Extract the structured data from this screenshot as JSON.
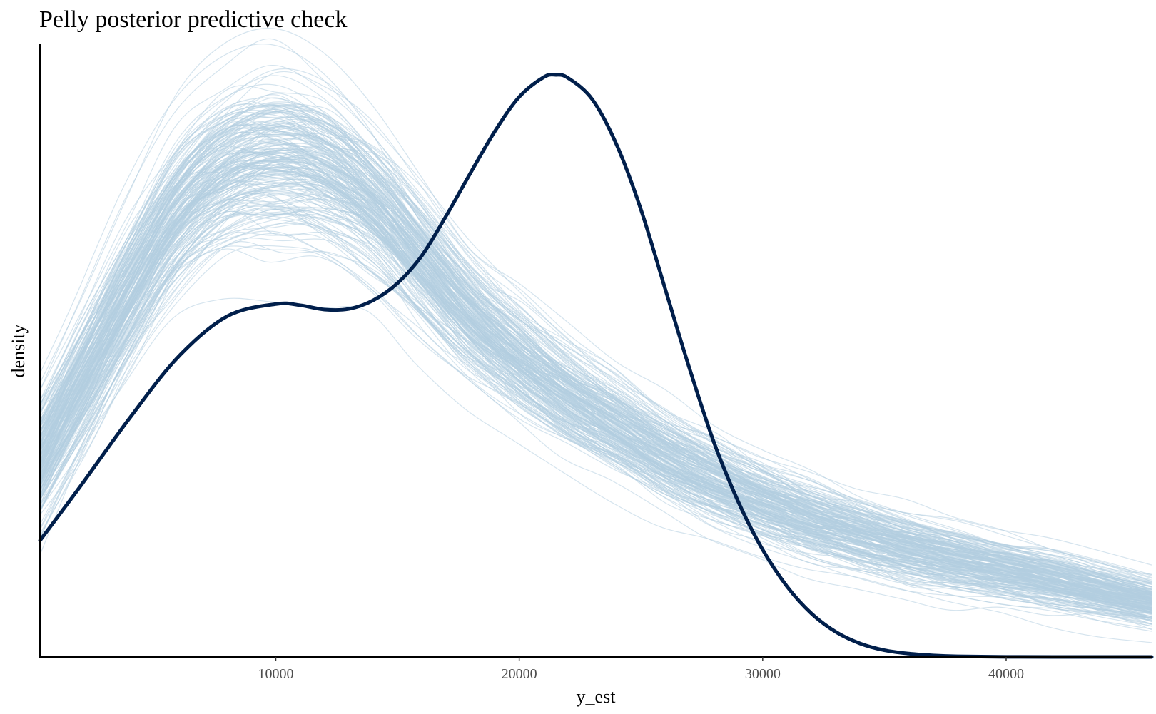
{
  "chart_data": {
    "type": "line",
    "title": "Pelly posterior predictive check",
    "xlabel": "y_est",
    "ylabel": "density",
    "xlim": [
      313,
      45980
    ],
    "ylim": [
      0,
      1
    ],
    "x_ticks": [
      10000,
      20000,
      30000,
      40000
    ],
    "x_tick_labels": [
      "10000",
      "20000",
      "30000",
      "40000"
    ],
    "y_ticks_shown": false,
    "grid": false,
    "legend": "none",
    "colors": {
      "observed": "#011F4B",
      "replicated": "#B3CDE0"
    },
    "observed": {
      "x": [
        313,
        2000,
        4000,
        6000,
        8000,
        10000,
        11000,
        12000,
        13000,
        14000,
        15000,
        16000,
        17000,
        18000,
        19000,
        20000,
        21000,
        21500,
        22000,
        23000,
        24000,
        25000,
        26000,
        27000,
        28000,
        29000,
        30000,
        31000,
        32000,
        33000,
        34000,
        35000,
        36000,
        37000,
        38000,
        40000,
        42000,
        45980
      ],
      "y": [
        0.19,
        0.28,
        0.39,
        0.49,
        0.556,
        0.576,
        0.574,
        0.567,
        0.568,
        0.582,
        0.61,
        0.655,
        0.72,
        0.79,
        0.858,
        0.914,
        0.946,
        0.95,
        0.945,
        0.91,
        0.836,
        0.73,
        0.6,
        0.47,
        0.35,
        0.253,
        0.175,
        0.115,
        0.071,
        0.041,
        0.022,
        0.011,
        0.0055,
        0.0025,
        0.001,
        0.0002,
        3e-05,
        0.0
      ]
    },
    "replicated_summary": {
      "draws_shown": 220,
      "x": [
        313,
        2000,
        4000,
        6000,
        8000,
        10000,
        12000,
        14000,
        16000,
        18000,
        20000,
        22000,
        24000,
        26000,
        28000,
        30000,
        32000,
        34000,
        36000,
        38000,
        40000,
        42000,
        44000,
        45980
      ],
      "mean": [
        0.32,
        0.45,
        0.6,
        0.73,
        0.8,
        0.82,
        0.8,
        0.74,
        0.65,
        0.56,
        0.49,
        0.43,
        0.38,
        0.33,
        0.29,
        0.255,
        0.225,
        0.2,
        0.178,
        0.16,
        0.143,
        0.126,
        0.108,
        0.09
      ],
      "spread": [
        0.07,
        0.07,
        0.075,
        0.08,
        0.085,
        0.09,
        0.085,
        0.075,
        0.068,
        0.062,
        0.058,
        0.055,
        0.05,
        0.048,
        0.045,
        0.042,
        0.04,
        0.038,
        0.036,
        0.034,
        0.032,
        0.03,
        0.028,
        0.026
      ]
    }
  }
}
